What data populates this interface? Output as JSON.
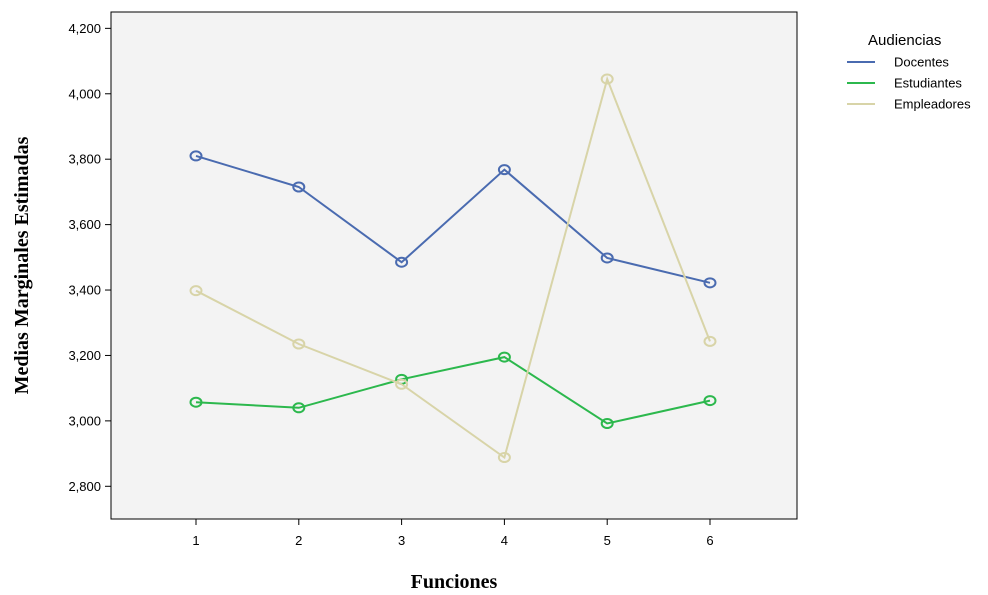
{
  "chart_data": {
    "type": "line",
    "title": "",
    "xlabel": "Funciones",
    "ylabel": "Medias Marginales Estimadas",
    "x": [
      "1",
      "2",
      "3",
      "4",
      "5",
      "6"
    ],
    "ylim": [
      2700,
      4250
    ],
    "yticks": [
      2800,
      3000,
      3200,
      3400,
      3600,
      3800,
      4000,
      4200
    ],
    "ytick_labels": [
      "2,800",
      "3,000",
      "3,200",
      "3,400",
      "3,600",
      "3,800",
      "4,000",
      "4,200"
    ],
    "grid": false,
    "legend": {
      "title": "Audiencias",
      "position": "top-right-outside"
    },
    "series": [
      {
        "name": "Docentes",
        "color": "#4a6bb0",
        "values": [
          3810,
          3715,
          3485,
          3768,
          3498,
          3422
        ]
      },
      {
        "name": "Estudiantes",
        "color": "#2cb84d",
        "values": [
          3057,
          3040,
          3127,
          3195,
          2992,
          3062
        ]
      },
      {
        "name": "Empleadores",
        "color": "#d8d4a8",
        "values": [
          3398,
          3235,
          3112,
          2888,
          4045,
          3243
        ]
      }
    ]
  }
}
